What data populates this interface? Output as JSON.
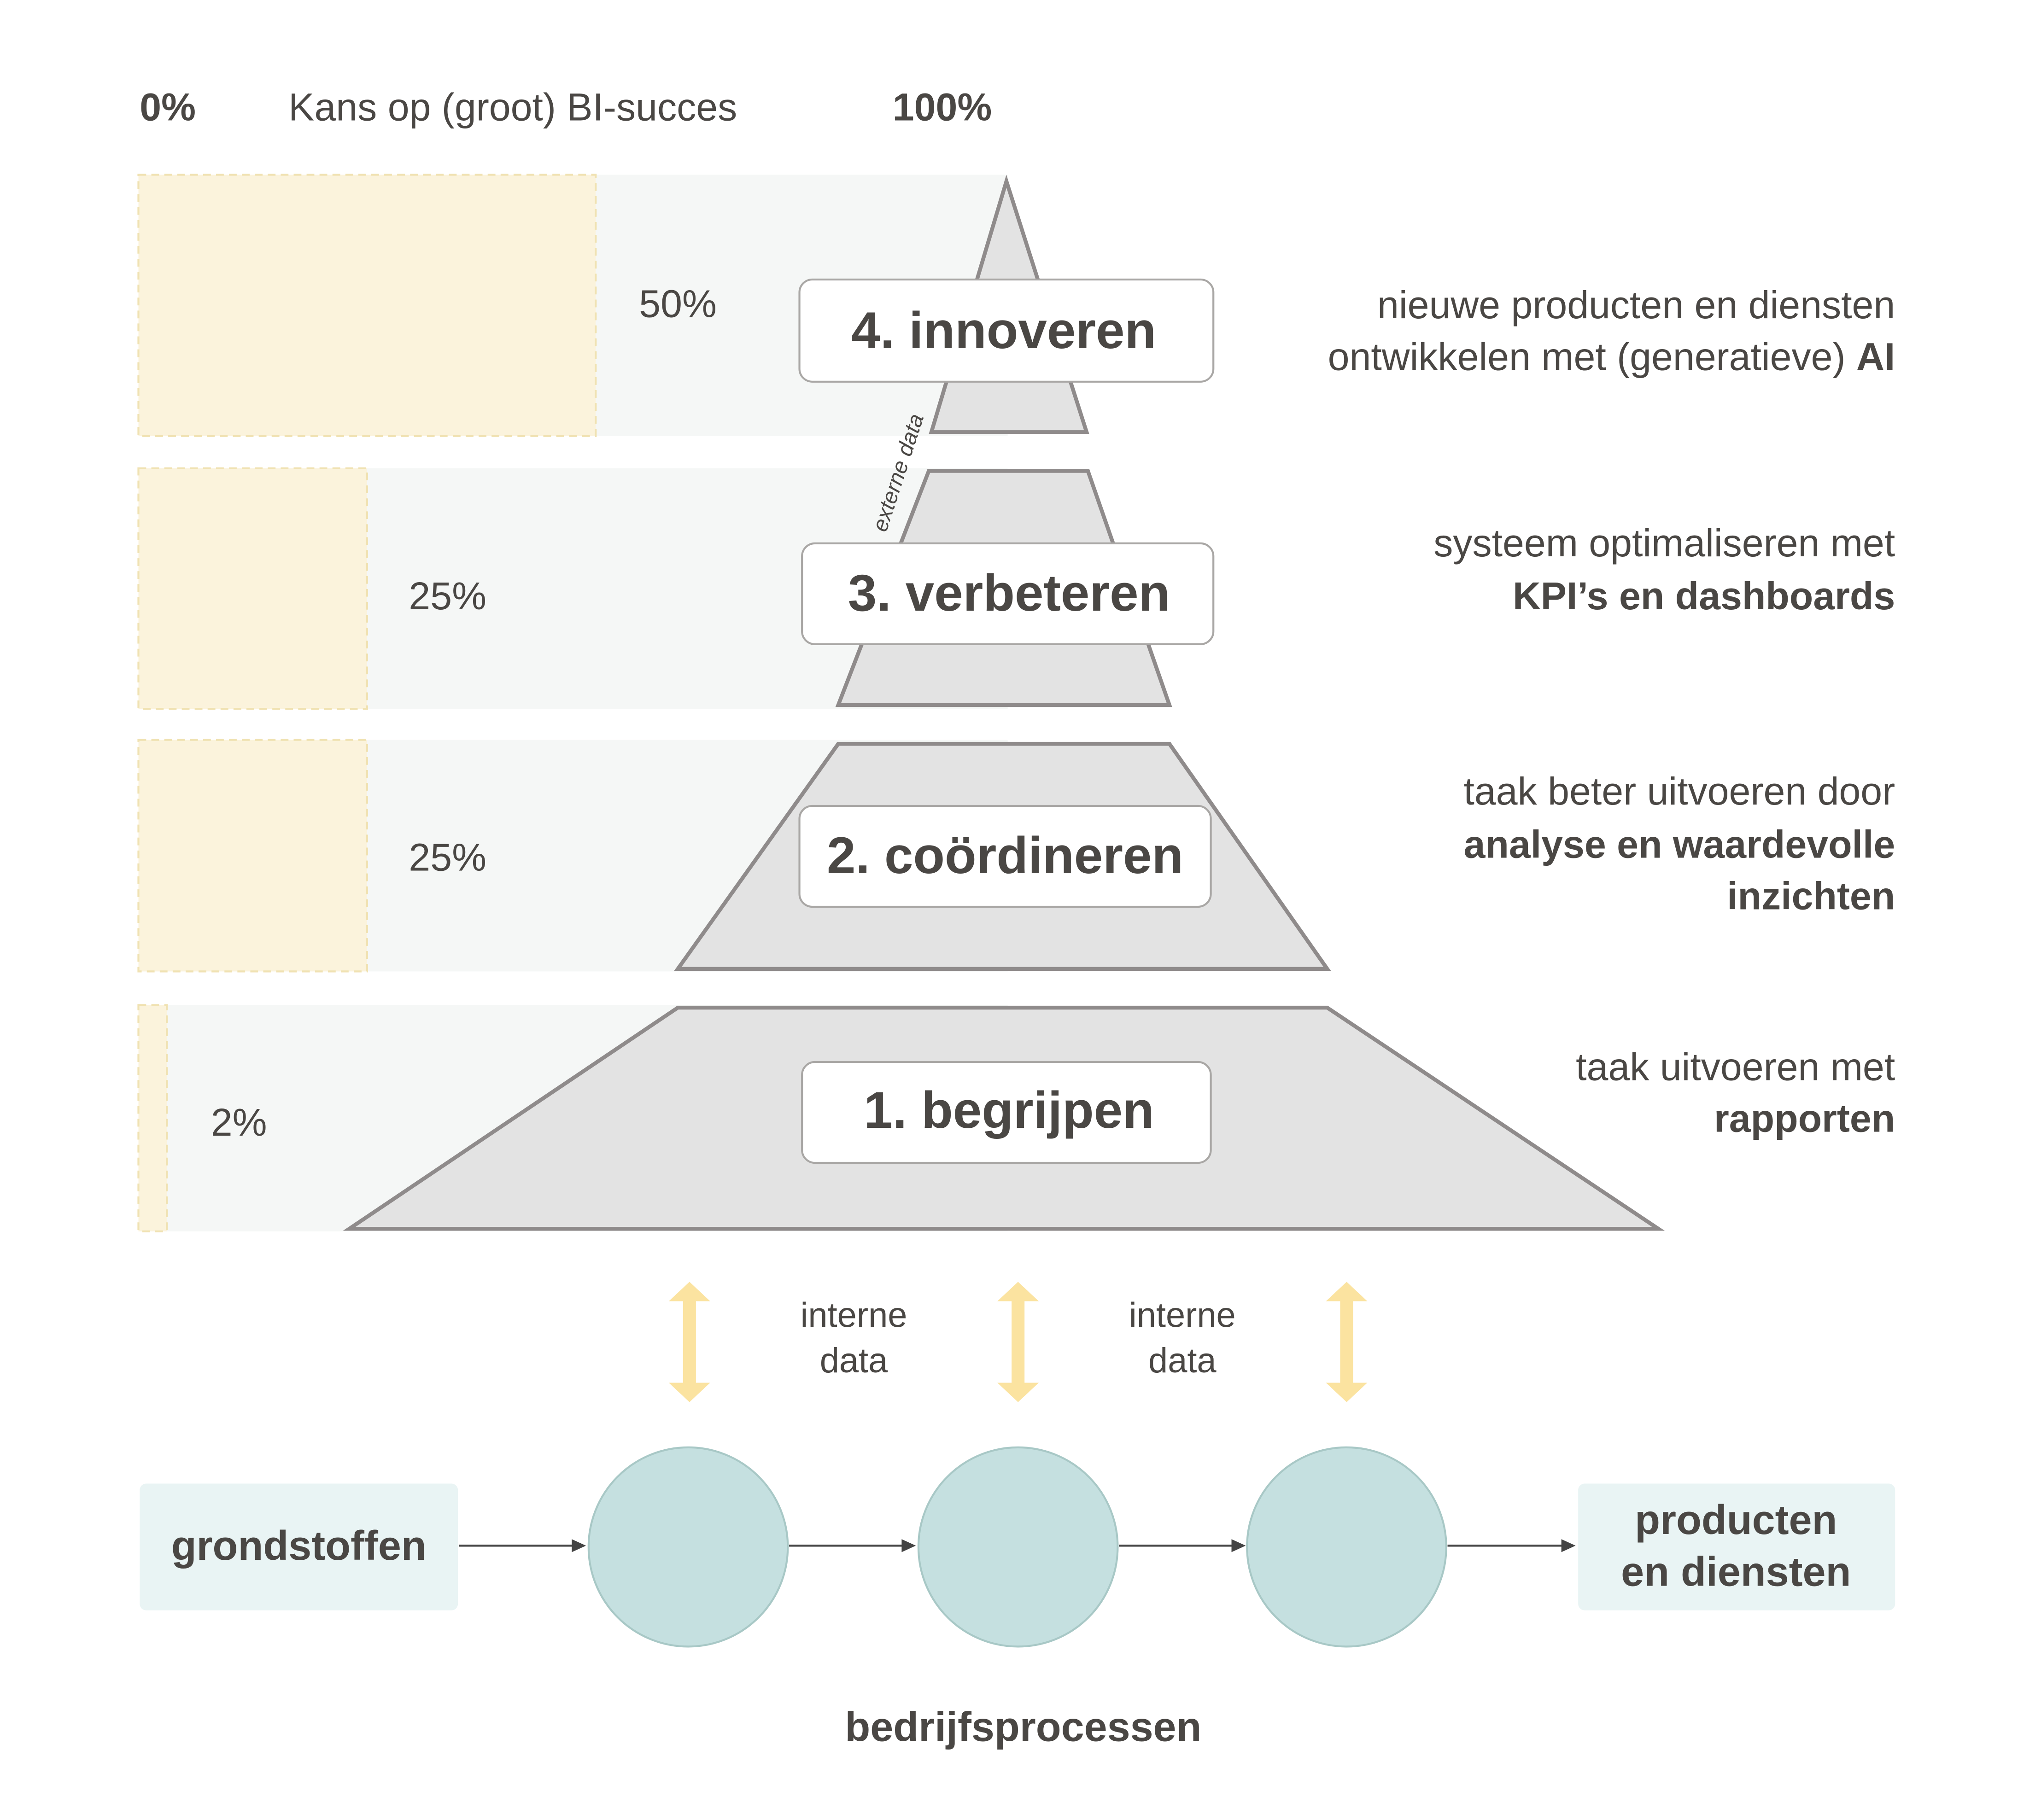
{
  "header": {
    "min_label": "0%",
    "title": "Kans op (groot) BI-succes",
    "max_label": "100%"
  },
  "levels": [
    {
      "label": "4. innoveren",
      "success_percent": 50,
      "percent_label": "50%",
      "description": [
        {
          "text": "nieuwe producten en diensten",
          "bold": ""
        },
        {
          "text": "ontwikkelen met (generatieve) ",
          "bold": "AI"
        }
      ]
    },
    {
      "label": "3. verbeteren",
      "success_percent": 25,
      "percent_label": "25%",
      "description": [
        {
          "text": "systeem optimaliseren met",
          "bold": ""
        },
        {
          "text": "",
          "bold": "KPI’s en dashboards"
        }
      ]
    },
    {
      "label": "2. coördineren",
      "success_percent": 25,
      "percent_label": "25%",
      "description": [
        {
          "text": "taak beter uitvoeren door",
          "bold": ""
        },
        {
          "text": "",
          "bold": "analyse en waardevolle"
        },
        {
          "text": "",
          "bold": "inzichten"
        }
      ]
    },
    {
      "label": "1. begrijpen",
      "success_percent": 2,
      "percent_label": "2%",
      "description": [
        {
          "text": "taak uitvoeren met",
          "bold": ""
        },
        {
          "text": "",
          "bold": "rapporten"
        }
      ]
    }
  ],
  "external_data_label": "externe data",
  "internal_data": [
    {
      "line1": "interne",
      "line2": "data"
    },
    {
      "line1": "interne",
      "line2": "data"
    }
  ],
  "flow": {
    "input": "grondstoffen",
    "output_line1": "producten",
    "output_line2": "en diensten",
    "caption": "bedrijfsprocessen"
  },
  "colors": {
    "success_fill": "#fbf3dc",
    "row_bg": "#f5f7f6",
    "pyramid": "#e3e3e3",
    "process": "#c5e0e0",
    "arrow": "#fbe3a0",
    "text": "#4a4744"
  }
}
